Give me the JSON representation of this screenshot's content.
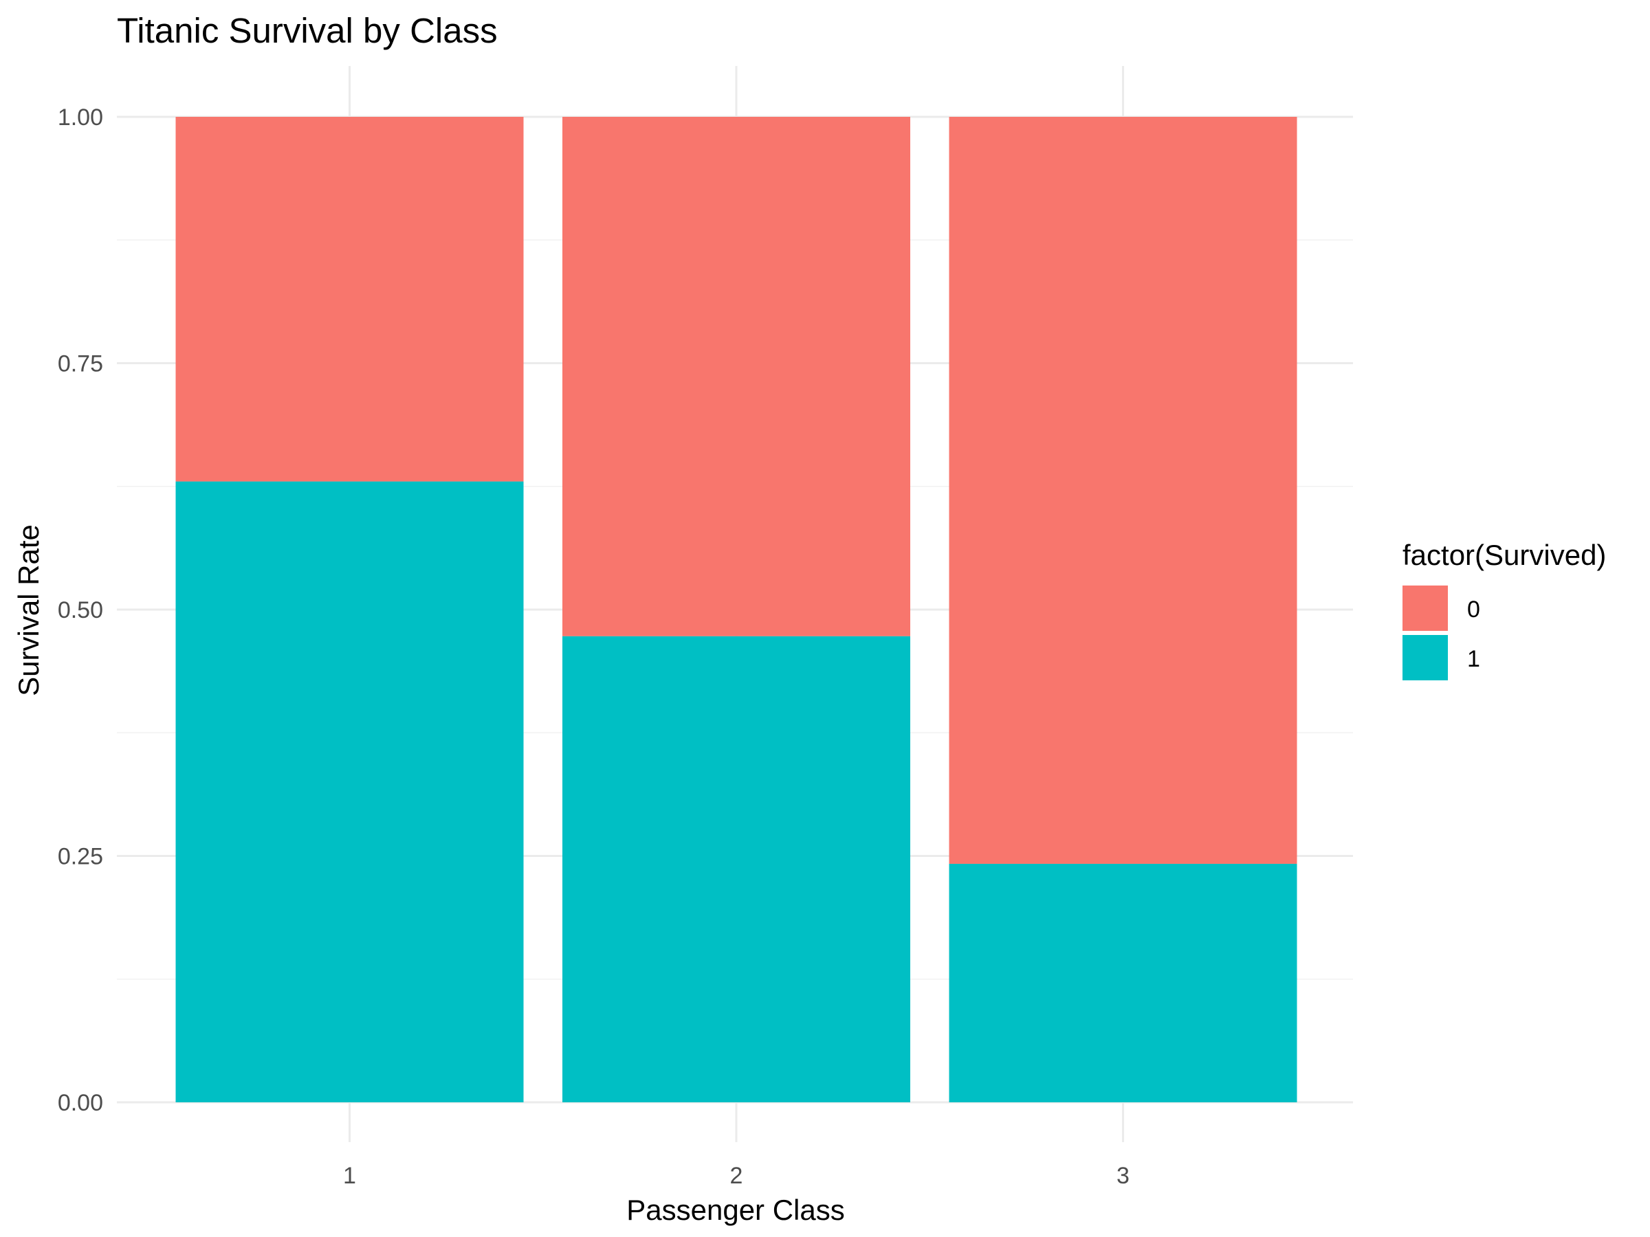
{
  "chart_data": {
    "type": "bar",
    "stacked": true,
    "title": "Titanic Survival by Class",
    "xlabel": "Passenger Class",
    "ylabel": "Survival Rate",
    "categories": [
      "1",
      "2",
      "3"
    ],
    "ylim": [
      0,
      1
    ],
    "yticks": [
      "0.00",
      "0.25",
      "0.50",
      "0.75",
      "1.00"
    ],
    "legend": {
      "title": "factor(Survived)",
      "position": "right"
    },
    "series": [
      {
        "name": "0",
        "color": "#F8766D",
        "values": [
          0.37,
          0.527,
          0.758
        ]
      },
      {
        "name": "1",
        "color": "#00BFC4",
        "values": [
          0.63,
          0.473,
          0.242
        ]
      }
    ],
    "grid": true
  }
}
